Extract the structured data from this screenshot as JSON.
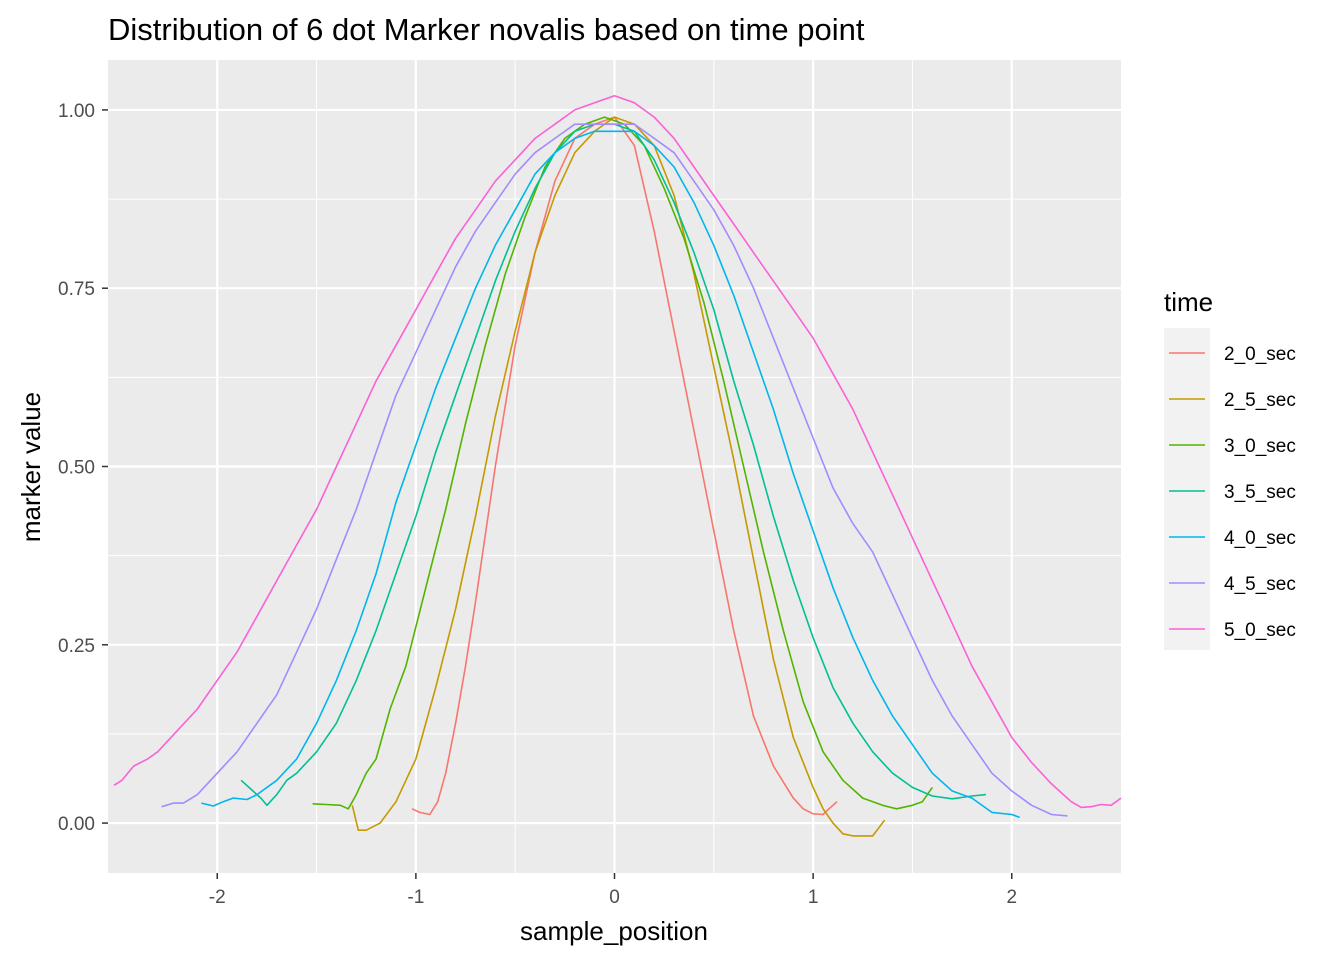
{
  "chart_data": {
    "type": "line",
    "title": "Distribution of 6 dot Marker novalis based on time point",
    "xlabel": "sample_position",
    "ylabel": "marker value",
    "xlim": [
      -2.55,
      2.55
    ],
    "ylim": [
      -0.07,
      1.07
    ],
    "x_ticks": [
      -2,
      -1,
      0,
      1,
      2
    ],
    "x_tick_labels": [
      "-2",
      "-1",
      "0",
      "1",
      "2"
    ],
    "y_ticks": [
      0.0,
      0.25,
      0.5,
      0.75,
      1.0
    ],
    "y_tick_labels": [
      "0.00",
      "0.25",
      "0.50",
      "0.75",
      "1.00"
    ],
    "grid": true,
    "legend": {
      "title": "time",
      "position": "right"
    },
    "series": [
      {
        "name": "2_0_sec",
        "color": "#F8766D",
        "x": [
          -1.02,
          -0.98,
          -0.93,
          -0.89,
          -0.85,
          -0.8,
          -0.75,
          -0.7,
          -0.6,
          -0.5,
          -0.4,
          -0.3,
          -0.2,
          -0.1,
          0.0,
          0.1,
          0.2,
          0.3,
          0.4,
          0.5,
          0.6,
          0.7,
          0.8,
          0.9,
          0.95,
          1.0,
          1.05,
          1.08,
          1.12
        ],
        "y": [
          0.02,
          0.015,
          0.012,
          0.03,
          0.07,
          0.14,
          0.22,
          0.31,
          0.5,
          0.67,
          0.8,
          0.9,
          0.96,
          0.98,
          0.99,
          0.95,
          0.83,
          0.69,
          0.55,
          0.41,
          0.27,
          0.15,
          0.08,
          0.035,
          0.02,
          0.013,
          0.012,
          0.02,
          0.03
        ]
      },
      {
        "name": "2_5_sec",
        "color": "#C49A00",
        "x": [
          -1.32,
          -1.29,
          -1.25,
          -1.18,
          -1.1,
          -1.0,
          -0.9,
          -0.8,
          -0.7,
          -0.6,
          -0.5,
          -0.4,
          -0.3,
          -0.2,
          -0.1,
          0.0,
          0.1,
          0.2,
          0.3,
          0.4,
          0.5,
          0.6,
          0.7,
          0.8,
          0.9,
          1.0,
          1.05,
          1.1,
          1.15,
          1.2,
          1.3,
          1.36
        ],
        "y": [
          0.025,
          -0.01,
          -0.01,
          0.0,
          0.03,
          0.09,
          0.19,
          0.3,
          0.43,
          0.57,
          0.69,
          0.8,
          0.88,
          0.94,
          0.97,
          0.99,
          0.98,
          0.95,
          0.88,
          0.77,
          0.64,
          0.51,
          0.37,
          0.23,
          0.12,
          0.05,
          0.02,
          0.0,
          -0.015,
          -0.018,
          -0.018,
          0.004
        ]
      },
      {
        "name": "3_0_sec",
        "color": "#53B400",
        "x": [
          -1.52,
          -1.45,
          -1.38,
          -1.34,
          -1.3,
          -1.25,
          -1.2,
          -1.13,
          -1.05,
          -0.95,
          -0.85,
          -0.75,
          -0.65,
          -0.55,
          -0.45,
          -0.35,
          -0.25,
          -0.15,
          -0.05,
          0.05,
          0.15,
          0.25,
          0.35,
          0.45,
          0.55,
          0.65,
          0.75,
          0.85,
          0.95,
          1.05,
          1.15,
          1.25,
          1.35,
          1.42,
          1.5,
          1.55,
          1.6
        ],
        "y": [
          0.027,
          0.026,
          0.025,
          0.02,
          0.04,
          0.07,
          0.09,
          0.16,
          0.22,
          0.33,
          0.44,
          0.56,
          0.67,
          0.77,
          0.85,
          0.92,
          0.96,
          0.98,
          0.99,
          0.98,
          0.95,
          0.89,
          0.82,
          0.73,
          0.62,
          0.5,
          0.38,
          0.27,
          0.17,
          0.1,
          0.06,
          0.035,
          0.025,
          0.02,
          0.025,
          0.03,
          0.05
        ]
      },
      {
        "name": "3_5_sec",
        "color": "#00C094",
        "x": [
          -1.88,
          -1.82,
          -1.78,
          -1.75,
          -1.7,
          -1.65,
          -1.6,
          -1.5,
          -1.4,
          -1.3,
          -1.2,
          -1.1,
          -1.0,
          -0.9,
          -0.8,
          -0.7,
          -0.6,
          -0.5,
          -0.4,
          -0.3,
          -0.2,
          -0.1,
          0.0,
          0.1,
          0.2,
          0.3,
          0.4,
          0.5,
          0.6,
          0.7,
          0.8,
          0.9,
          1.0,
          1.1,
          1.2,
          1.3,
          1.4,
          1.5,
          1.6,
          1.7,
          1.8,
          1.87
        ],
        "y": [
          0.06,
          0.045,
          0.035,
          0.025,
          0.04,
          0.06,
          0.07,
          0.1,
          0.14,
          0.2,
          0.27,
          0.35,
          0.43,
          0.52,
          0.6,
          0.68,
          0.76,
          0.83,
          0.89,
          0.94,
          0.97,
          0.98,
          0.98,
          0.97,
          0.93,
          0.87,
          0.8,
          0.72,
          0.62,
          0.53,
          0.43,
          0.34,
          0.26,
          0.19,
          0.14,
          0.1,
          0.07,
          0.05,
          0.038,
          0.034,
          0.038,
          0.04
        ]
      },
      {
        "name": "4_0_sec",
        "color": "#00B6EB",
        "x": [
          -2.08,
          -2.02,
          -1.97,
          -1.92,
          -1.85,
          -1.8,
          -1.7,
          -1.6,
          -1.5,
          -1.4,
          -1.3,
          -1.2,
          -1.1,
          -1.0,
          -0.9,
          -0.8,
          -0.7,
          -0.6,
          -0.5,
          -0.4,
          -0.3,
          -0.2,
          -0.1,
          0.0,
          0.1,
          0.2,
          0.3,
          0.4,
          0.5,
          0.6,
          0.7,
          0.8,
          0.9,
          1.0,
          1.1,
          1.2,
          1.3,
          1.4,
          1.5,
          1.6,
          1.7,
          1.8,
          1.9,
          2.0,
          2.04
        ],
        "y": [
          0.028,
          0.024,
          0.03,
          0.035,
          0.033,
          0.04,
          0.06,
          0.09,
          0.14,
          0.2,
          0.27,
          0.35,
          0.45,
          0.53,
          0.61,
          0.68,
          0.75,
          0.81,
          0.86,
          0.91,
          0.94,
          0.96,
          0.97,
          0.97,
          0.97,
          0.95,
          0.92,
          0.87,
          0.81,
          0.74,
          0.66,
          0.58,
          0.49,
          0.41,
          0.33,
          0.26,
          0.2,
          0.15,
          0.11,
          0.07,
          0.045,
          0.035,
          0.015,
          0.012,
          0.008
        ]
      },
      {
        "name": "4_5_sec",
        "color": "#A58AFF",
        "x": [
          -2.28,
          -2.22,
          -2.17,
          -2.1,
          -2.0,
          -1.9,
          -1.8,
          -1.7,
          -1.6,
          -1.5,
          -1.4,
          -1.3,
          -1.2,
          -1.1,
          -1.0,
          -0.9,
          -0.8,
          -0.7,
          -0.6,
          -0.5,
          -0.4,
          -0.3,
          -0.2,
          -0.1,
          0.0,
          0.1,
          0.2,
          0.3,
          0.4,
          0.5,
          0.6,
          0.7,
          0.8,
          0.9,
          1.0,
          1.1,
          1.2,
          1.3,
          1.4,
          1.5,
          1.6,
          1.7,
          1.8,
          1.9,
          2.0,
          2.1,
          2.2,
          2.28
        ],
        "y": [
          0.023,
          0.028,
          0.028,
          0.04,
          0.07,
          0.1,
          0.14,
          0.18,
          0.24,
          0.3,
          0.37,
          0.44,
          0.52,
          0.6,
          0.66,
          0.72,
          0.78,
          0.83,
          0.87,
          0.91,
          0.94,
          0.96,
          0.98,
          0.98,
          0.98,
          0.98,
          0.96,
          0.94,
          0.9,
          0.86,
          0.81,
          0.75,
          0.68,
          0.61,
          0.54,
          0.47,
          0.42,
          0.38,
          0.32,
          0.26,
          0.2,
          0.15,
          0.11,
          0.07,
          0.045,
          0.025,
          0.012,
          0.01
        ]
      },
      {
        "name": "5_0_sec",
        "color": "#FB61D7",
        "x": [
          -2.52,
          -2.48,
          -2.42,
          -2.35,
          -2.3,
          -2.2,
          -2.1,
          -2.0,
          -1.9,
          -1.8,
          -1.7,
          -1.6,
          -1.5,
          -1.4,
          -1.3,
          -1.2,
          -1.1,
          -1.0,
          -0.9,
          -0.8,
          -0.7,
          -0.6,
          -0.5,
          -0.4,
          -0.3,
          -0.2,
          -0.1,
          0.0,
          0.1,
          0.2,
          0.3,
          0.4,
          0.5,
          0.6,
          0.7,
          0.8,
          0.9,
          1.0,
          1.1,
          1.2,
          1.3,
          1.4,
          1.5,
          1.6,
          1.7,
          1.8,
          1.9,
          2.0,
          2.1,
          2.2,
          2.3,
          2.35,
          2.4,
          2.45,
          2.5,
          2.55
        ],
        "y": [
          0.053,
          0.06,
          0.08,
          0.09,
          0.1,
          0.13,
          0.16,
          0.2,
          0.24,
          0.29,
          0.34,
          0.39,
          0.44,
          0.5,
          0.56,
          0.62,
          0.67,
          0.72,
          0.77,
          0.82,
          0.86,
          0.9,
          0.93,
          0.96,
          0.98,
          1.0,
          1.01,
          1.02,
          1.01,
          0.99,
          0.96,
          0.92,
          0.88,
          0.84,
          0.8,
          0.76,
          0.72,
          0.68,
          0.63,
          0.58,
          0.52,
          0.46,
          0.4,
          0.34,
          0.28,
          0.22,
          0.17,
          0.12,
          0.085,
          0.055,
          0.03,
          0.022,
          0.023,
          0.026,
          0.025,
          0.035
        ]
      }
    ]
  }
}
